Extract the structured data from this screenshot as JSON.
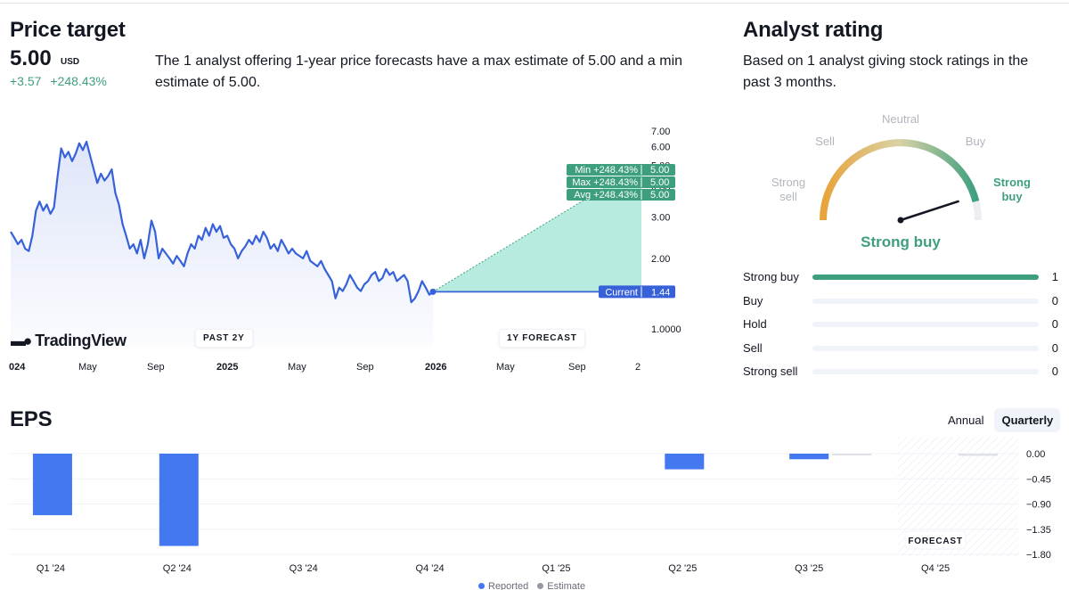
{
  "price_target": {
    "title": "Price target",
    "value": "5.00",
    "currency": "USD",
    "change_abs": "+3.57",
    "change_pct": "+248.43%",
    "description": "The 1 analyst offering 1-year price forecasts have a max estimate of 5.00 and a min estimate of 5.00.",
    "brand": "TradingView",
    "past_label": "PAST 2Y",
    "forecast_label": "1Y FORECAST"
  },
  "analyst_rating": {
    "title": "Analyst rating",
    "description": "Based on 1 analyst giving stock ratings in the past 3 months.",
    "gauge_labels": {
      "strong_sell": "Strong sell",
      "sell": "Sell",
      "neutral": "Neutral",
      "buy": "Buy",
      "strong_buy": "Strong buy"
    },
    "gauge_level": 0.9,
    "verdict": "Strong buy",
    "rows": [
      {
        "label": "Strong buy",
        "count": 1
      },
      {
        "label": "Buy",
        "count": 0
      },
      {
        "label": "Hold",
        "count": 0
      },
      {
        "label": "Sell",
        "count": 0
      },
      {
        "label": "Strong sell",
        "count": 0
      }
    ]
  },
  "eps": {
    "title": "EPS",
    "tabs": [
      {
        "label": "Annual",
        "active": false
      },
      {
        "label": "Quarterly",
        "active": true
      }
    ],
    "forecast_label": "FORECAST",
    "legend": {
      "reported": "Reported",
      "estimate": "Estimate"
    }
  },
  "colors": {
    "price_line": "#3761d9",
    "forecast_fill": "#b8ebdf",
    "forecast_tag": "#3e9f7f",
    "current_tag": "#3761d9",
    "eps_bar": "#4378f0",
    "estimate": "#c8ccd6",
    "gauge_green": "#3e9f7f",
    "gauge_orange": "#e8a33a"
  },
  "chart_data": [
    {
      "type": "line",
      "name": "price-history-and-forecast",
      "x_ticks": [
        {
          "label": "024",
          "bold": true
        },
        {
          "label": "May",
          "bold": false
        },
        {
          "label": "Sep",
          "bold": false
        },
        {
          "label": "2025",
          "bold": true
        },
        {
          "label": "May",
          "bold": false
        },
        {
          "label": "Sep",
          "bold": false
        },
        {
          "label": "2026",
          "bold": true
        },
        {
          "label": "May",
          "bold": false
        },
        {
          "label": "Sep",
          "bold": false
        },
        {
          "label": "2",
          "bold": false
        }
      ],
      "y_ticks": [
        "7.00",
        "6.00",
        "5.00",
        "4.00",
        "3.00",
        "2.00",
        "1.0000"
      ],
      "ylim": [
        1,
        7
      ],
      "y_log": true,
      "history": [
        2.6,
        2.45,
        2.3,
        2.4,
        2.2,
        2.15,
        2.5,
        3.2,
        3.5,
        3.2,
        3.4,
        3.1,
        3.3,
        4.5,
        5.9,
        5.4,
        5.7,
        5.2,
        5.6,
        6.2,
        5.8,
        6.3,
        5.5,
        4.8,
        4.2,
        4.6,
        4.3,
        4.5,
        4.8,
        3.8,
        3.4,
        2.8,
        2.5,
        2.2,
        2.3,
        2.1,
        2.4,
        2.0,
        2.3,
        2.9,
        2.6,
        2.0,
        2.2,
        2.1,
        2.0,
        1.9,
        2.05,
        1.95,
        1.85,
        2.1,
        2.3,
        2.2,
        2.5,
        2.4,
        2.7,
        2.5,
        2.8,
        2.6,
        2.75,
        2.45,
        2.5,
        2.3,
        2.2,
        2.0,
        2.15,
        2.25,
        2.4,
        2.3,
        2.5,
        2.35,
        2.6,
        2.45,
        2.2,
        2.3,
        2.15,
        2.4,
        2.25,
        2.1,
        2.2,
        2.1,
        2.05,
        2.0,
        2.15,
        1.95,
        1.9,
        1.85,
        1.95,
        1.8,
        1.7,
        1.6,
        1.35,
        1.5,
        1.45,
        1.55,
        1.7,
        1.6,
        1.5,
        1.45,
        1.55,
        1.6,
        1.7,
        1.75,
        1.6,
        1.65,
        1.8,
        1.7,
        1.75,
        1.6,
        1.65,
        1.7,
        1.6,
        1.3,
        1.35,
        1.45,
        1.6,
        1.5,
        1.4,
        1.44
      ],
      "current": 1.44,
      "current_label": "Current",
      "current_text": "1.44",
      "forecast": [
        {
          "label": "Min",
          "pct": "+248.43%",
          "value": "5.00"
        },
        {
          "label": "Max",
          "pct": "+248.43%",
          "value": "5.00"
        },
        {
          "label": "Avg",
          "pct": "+248.43%",
          "value": "5.00"
        }
      ],
      "forecast_value": 5.0
    },
    {
      "type": "bar",
      "name": "eps-quarterly",
      "categories": [
        "Q1 '24",
        "Q2 '24",
        "Q3 '24",
        "Q4 '24",
        "Q1 '25",
        "Q2 '25",
        "Q3 '25",
        "Q4 '25"
      ],
      "series": [
        {
          "name": "Reported",
          "values": [
            -1.1,
            -1.65,
            null,
            null,
            null,
            -0.28,
            -0.1,
            null
          ]
        },
        {
          "name": "Estimate",
          "values": [
            null,
            null,
            null,
            null,
            null,
            null,
            -0.02,
            -0.04
          ]
        }
      ],
      "y_ticks": [
        "0.00",
        "−0.45",
        "−0.90",
        "−1.35",
        "−1.80"
      ],
      "ylim": [
        -1.8,
        0
      ],
      "forecast_from": "Q4 '25"
    }
  ]
}
